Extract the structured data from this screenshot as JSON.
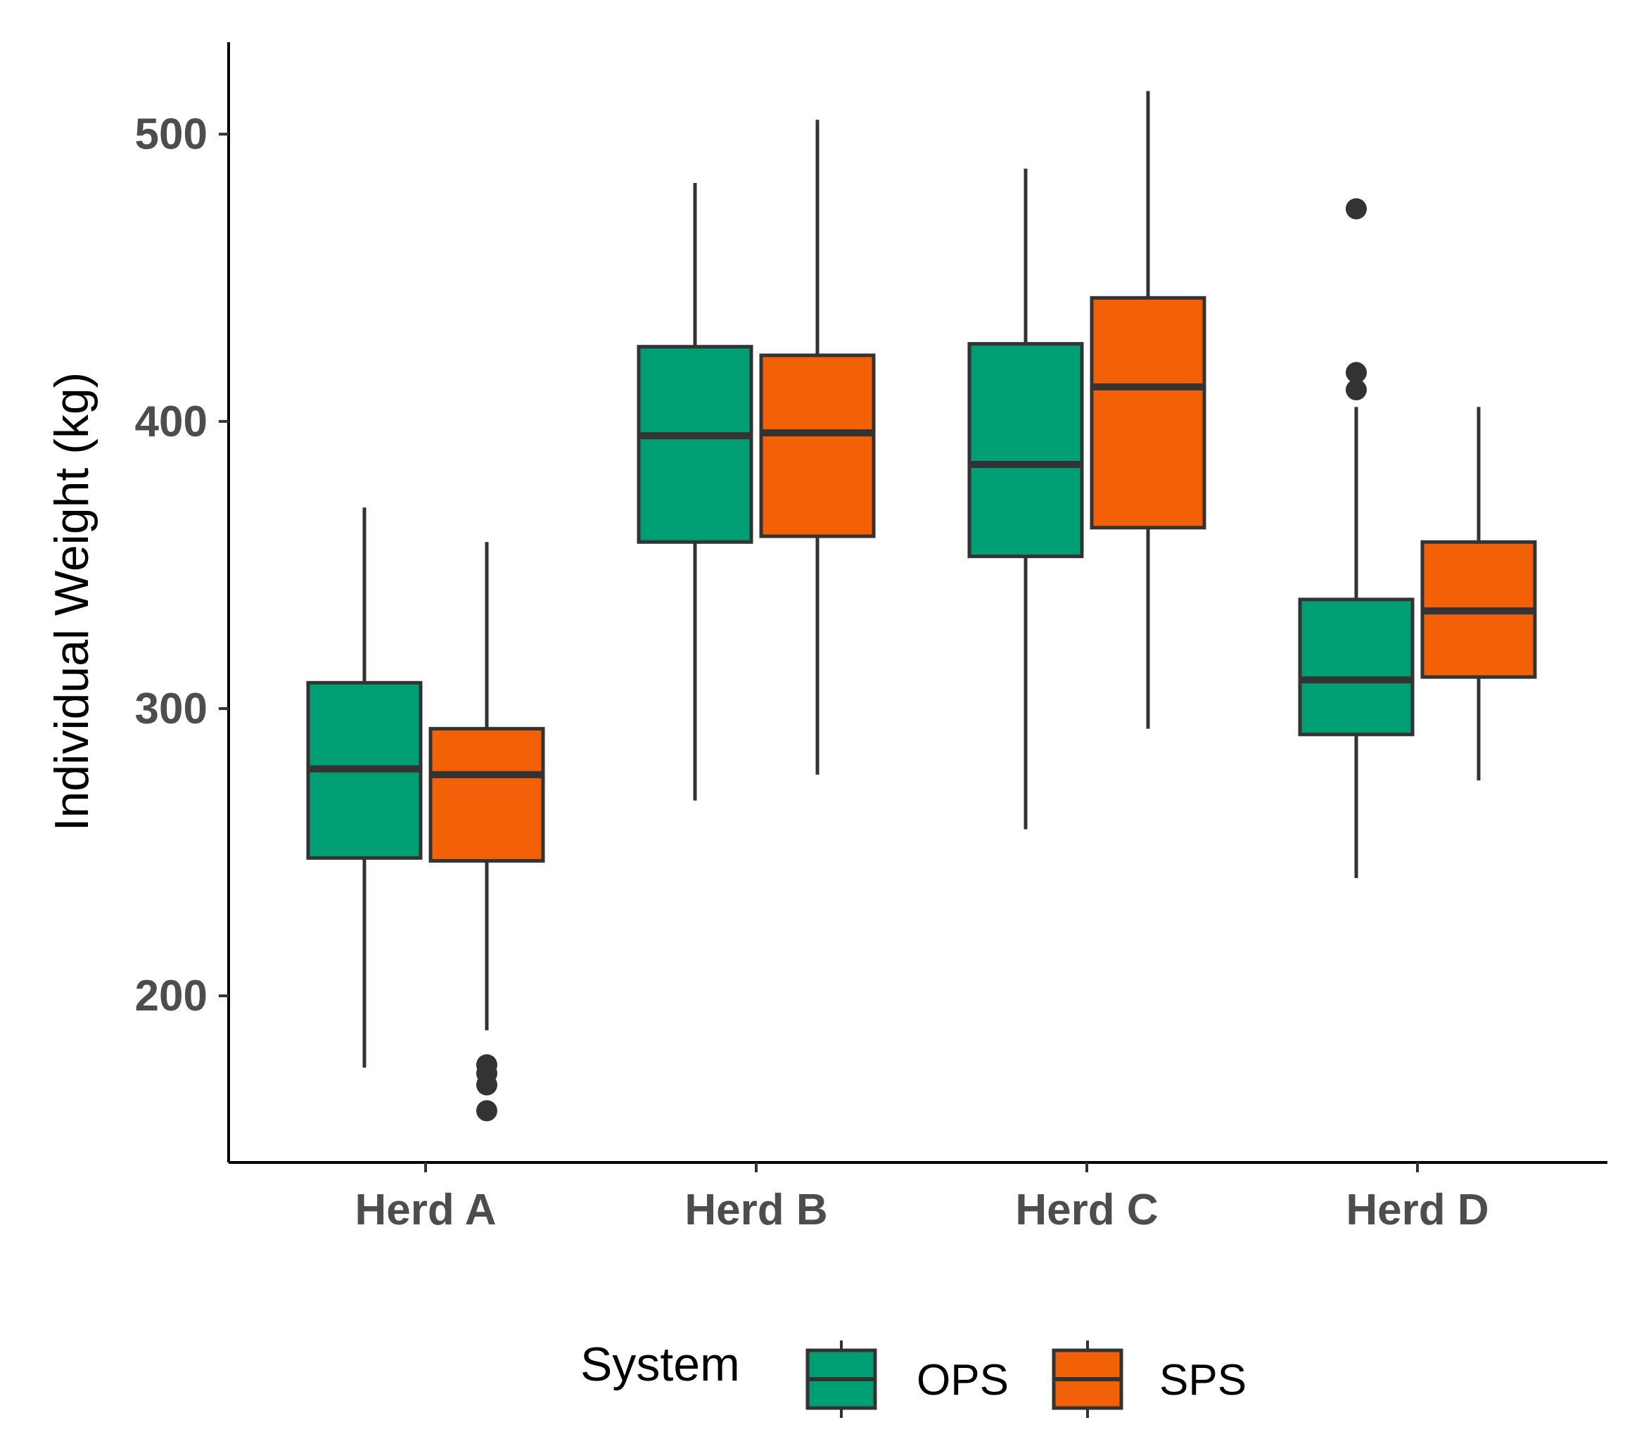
{
  "chart_data": {
    "type": "boxplot",
    "title": "",
    "xlabel": "",
    "ylabel": "Individual Weight (kg)",
    "ylim": [
      142,
      532
    ],
    "yticks": [
      200,
      300,
      400,
      500
    ],
    "categories": [
      "Herd A",
      "Herd B",
      "Herd C",
      "Herd D"
    ],
    "legend": {
      "title": "System",
      "position": "bottom"
    },
    "series": [
      {
        "name": "OPS",
        "color": "#009E73",
        "boxes": [
          {
            "category": "Herd A",
            "whisker_low": 175,
            "q1": 248,
            "median": 279,
            "q3": 309,
            "whisker_high": 370,
            "outliers": []
          },
          {
            "category": "Herd B",
            "whisker_low": 268,
            "q1": 358,
            "median": 395,
            "q3": 426,
            "whisker_high": 483,
            "outliers": []
          },
          {
            "category": "Herd C",
            "whisker_low": 258,
            "q1": 353,
            "median": 385,
            "q3": 427,
            "whisker_high": 488,
            "outliers": []
          },
          {
            "category": "Herd D",
            "whisker_low": 241,
            "q1": 291,
            "median": 310,
            "q3": 338,
            "whisker_high": 405,
            "outliers": [
              474,
              417,
              411
            ]
          }
        ]
      },
      {
        "name": "SPS",
        "color": "#F26107",
        "boxes": [
          {
            "category": "Herd A",
            "whisker_low": 188,
            "q1": 247,
            "median": 277,
            "q3": 293,
            "whisker_high": 358,
            "outliers": [
              176,
              173,
              169,
              160
            ]
          },
          {
            "category": "Herd B",
            "whisker_low": 277,
            "q1": 360,
            "median": 396,
            "q3": 423,
            "whisker_high": 505,
            "outliers": []
          },
          {
            "category": "Herd C",
            "whisker_low": 293,
            "q1": 363,
            "median": 412,
            "q3": 443,
            "whisker_high": 515,
            "outliers": []
          },
          {
            "category": "Herd D",
            "whisker_low": 275,
            "q1": 311,
            "median": 334,
            "q3": 358,
            "whisker_high": 405,
            "outliers": []
          }
        ]
      }
    ]
  }
}
